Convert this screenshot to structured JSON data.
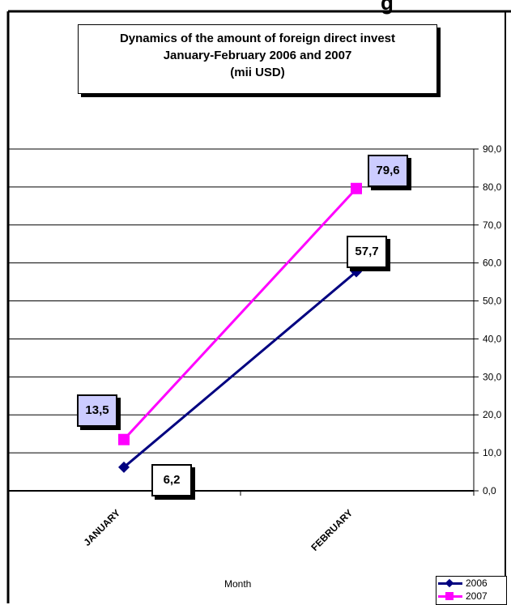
{
  "chart_data": {
    "type": "line",
    "title_lines": [
      "Dynamics of the amount of foreign direct invest",
      "January-February 2006 and  2007",
      "(mii USD)"
    ],
    "top_fragment": "g",
    "categories": [
      "JANUARY",
      "FEBRUARY"
    ],
    "xlabel": "Month",
    "ylabel": "",
    "ylim": [
      0,
      90
    ],
    "yticks": [
      "0,0",
      "10,0",
      "20,0",
      "30,0",
      "40,0",
      "50,0",
      "60,0",
      "70,0",
      "80,0",
      "90,0"
    ],
    "y_axis_position": "right",
    "grid": true,
    "legend_position": "bottom-right",
    "series": [
      {
        "name": "2006",
        "values": [
          6.2,
          57.7
        ],
        "labels": [
          "6,2",
          "57,7"
        ],
        "color": "#000080",
        "marker": "diamond",
        "label_bg": "#ffffff"
      },
      {
        "name": "2007",
        "values": [
          13.5,
          79.6
        ],
        "labels": [
          "13,5",
          "79,6"
        ],
        "color": "#ff00ff",
        "marker": "square",
        "label_bg": "#ccccff"
      }
    ]
  }
}
